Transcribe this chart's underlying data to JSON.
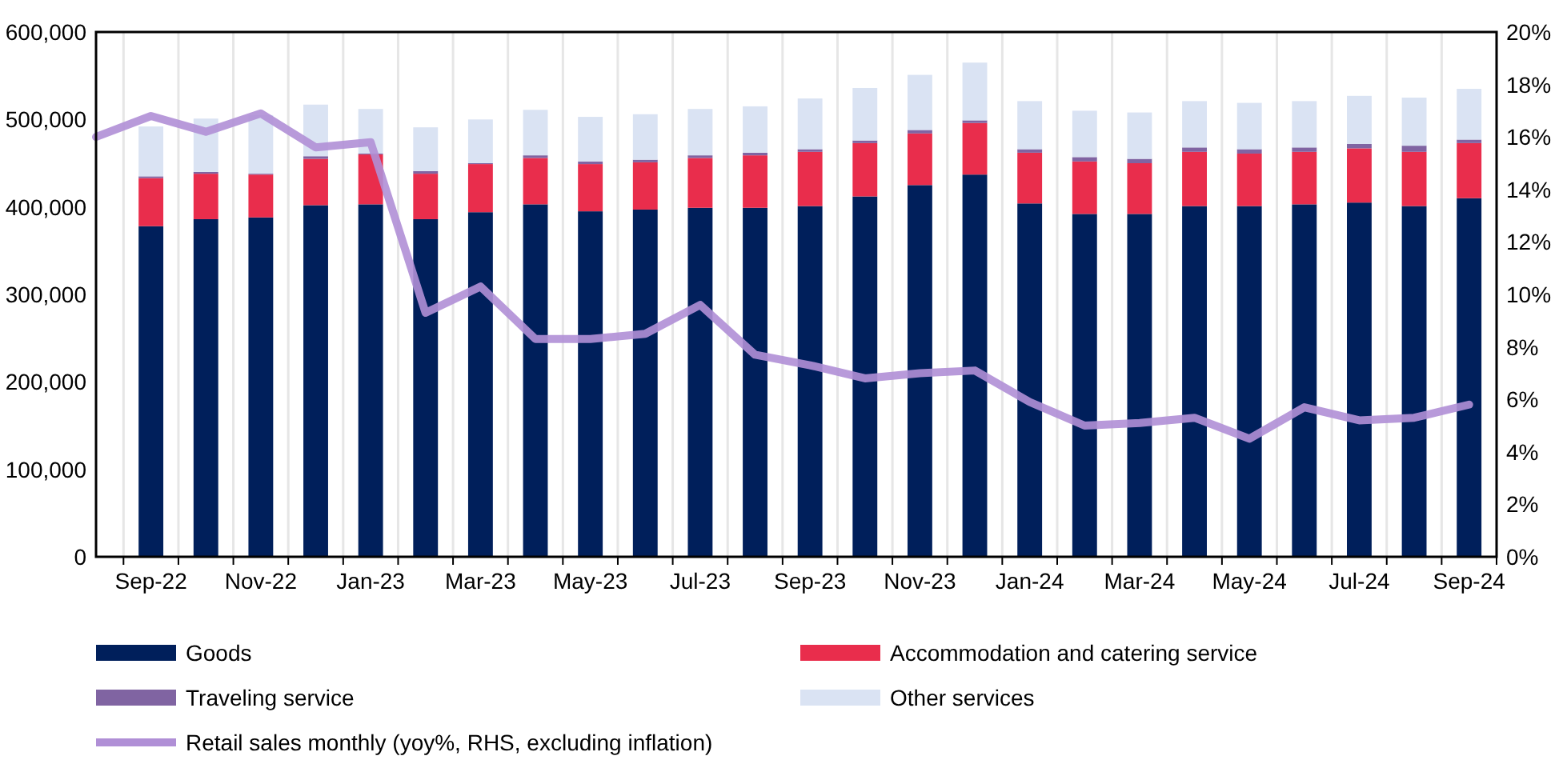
{
  "chart_data": {
    "type": "bar",
    "stacked": true,
    "categories": [
      null,
      "Sep-22",
      null,
      "Nov-22",
      null,
      "Jan-23",
      null,
      "Mar-23",
      null,
      "May-23",
      null,
      "Jul-23",
      null,
      "Sep-23",
      null,
      "Nov-23",
      null,
      "Jan-24",
      null,
      "Mar-24",
      null,
      "May-24",
      null,
      "Jul-24",
      null,
      "Sep-24"
    ],
    "series": [
      {
        "name": "Goods",
        "color": "#001f5b",
        "values": [
          null,
          378000,
          386000,
          388000,
          402000,
          403000,
          386000,
          394000,
          403000,
          395000,
          397000,
          399000,
          399000,
          401000,
          412000,
          425000,
          437000,
          404000,
          392000,
          392000,
          401000,
          401000,
          403000,
          405000,
          401000,
          410000
        ]
      },
      {
        "name": "Accommodation and catering service",
        "color": "#e92d4c",
        "values": [
          null,
          55000,
          52000,
          49000,
          53000,
          57000,
          52000,
          55000,
          53000,
          54000,
          54000,
          57000,
          60000,
          62000,
          61000,
          59000,
          59000,
          58000,
          60000,
          58000,
          62000,
          60000,
          60000,
          62000,
          62000,
          63000
        ]
      },
      {
        "name": "Traveling service",
        "color": "#8064a2",
        "values": [
          null,
          2000,
          2000,
          1000,
          3000,
          1000,
          3000,
          1000,
          3000,
          3000,
          3000,
          3000,
          3000,
          3000,
          3000,
          4000,
          3000,
          4000,
          5000,
          5000,
          5000,
          5000,
          5000,
          5000,
          7000,
          4000
        ]
      },
      {
        "name": "Other services",
        "color": "#dae3f3",
        "values": [
          null,
          57000,
          61000,
          67000,
          59000,
          51000,
          50000,
          50000,
          52000,
          51000,
          52000,
          53000,
          53000,
          58000,
          60000,
          63000,
          66000,
          55000,
          53000,
          53000,
          53000,
          53000,
          53000,
          55000,
          55000,
          58000
        ]
      },
      {
        "name": "Retail sales monthly (yoy%, RHS, excluding inflation)",
        "type": "line",
        "axis": "y2",
        "color": "#b08fd6",
        "values": [
          16.0,
          16.8,
          16.2,
          16.9,
          15.6,
          15.8,
          9.3,
          10.3,
          8.3,
          8.3,
          8.5,
          9.6,
          7.7,
          7.3,
          6.8,
          7.0,
          7.1,
          5.9,
          5.0,
          5.1,
          5.3,
          4.5,
          5.7,
          5.2,
          5.3,
          5.8
        ]
      }
    ],
    "ylim": [
      0,
      600000
    ],
    "yticks": [
      {
        "value": 0,
        "label": "0"
      },
      {
        "value": 100000,
        "label": "100,000"
      },
      {
        "value": 200000,
        "label": "200,000"
      },
      {
        "value": 300000,
        "label": "300,000"
      },
      {
        "value": 400000,
        "label": "400,000"
      },
      {
        "value": 500000,
        "label": "500,000"
      },
      {
        "value": 600000,
        "label": "600,000"
      }
    ],
    "y2lim": [
      0,
      20
    ],
    "y2ticks": [
      {
        "value": 0,
        "label": "0%"
      },
      {
        "value": 2,
        "label": "2%"
      },
      {
        "value": 4,
        "label": "4%"
      },
      {
        "value": 6,
        "label": "6%"
      },
      {
        "value": 8,
        "label": "8%"
      },
      {
        "value": 10,
        "label": "10%"
      },
      {
        "value": 12,
        "label": "12%"
      },
      {
        "value": 14,
        "label": "14%"
      },
      {
        "value": 16,
        "label": "16%"
      },
      {
        "value": 18,
        "label": "18%"
      },
      {
        "value": 20,
        "label": "20%"
      }
    ],
    "grid": "x",
    "legend": "bottom",
    "marker": "none",
    "line_style": "solid"
  }
}
